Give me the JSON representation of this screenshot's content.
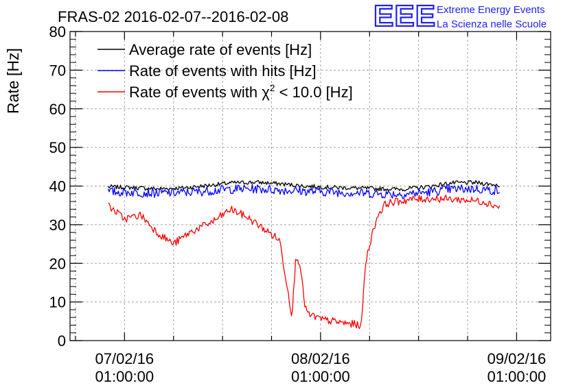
{
  "colors": {
    "average": "#000000",
    "hits": "#0000ff",
    "chi2": "#ff0000",
    "logo": "#2222ee",
    "grid": "#a0a0a0"
  },
  "logo": {
    "mark": "EEE",
    "line1": "Extreme Energy Events",
    "line2": "La Scienza nelle Scuole"
  },
  "chart_data": {
    "type": "line",
    "title": "FRAS-02 2016-02-07--2016-02-08",
    "ylabel": "Rate [Hz]",
    "xlabel": "",
    "ylim": [
      0,
      80
    ],
    "xlim": [
      "2016-02-06 18:20",
      "2016-02-09 05:10"
    ],
    "yticks": [
      0,
      10,
      20,
      30,
      40,
      50,
      60,
      70,
      80
    ],
    "xticks": [
      {
        "x": "2016-02-07 01:00:00",
        "date": "07/02/16",
        "time": "01:00:00"
      },
      {
        "x": "2016-02-08 01:00:00",
        "date": "08/02/16",
        "time": "01:00:00"
      },
      {
        "x": "2016-02-09 01:00:00",
        "date": "09/02/16",
        "time": "01:00:00"
      }
    ],
    "grid": true,
    "legend_position": "top-left",
    "series": [
      {
        "name": "Average rate of events [Hz]",
        "color": "#000000",
        "x": [
          "2016-02-06 23:00",
          "2016-02-07 02:00",
          "2016-02-07 05:00",
          "2016-02-07 08:00",
          "2016-02-07 11:00",
          "2016-02-07 14:00",
          "2016-02-07 17:00",
          "2016-02-07 20:00",
          "2016-02-07 23:00",
          "2016-02-08 02:00",
          "2016-02-08 05:00",
          "2016-02-08 08:00",
          "2016-02-08 11:00",
          "2016-02-08 14:00",
          "2016-02-08 17:00",
          "2016-02-08 20:00",
          "2016-02-08 23:00"
        ],
        "y": [
          39.8,
          39.6,
          39.3,
          39.5,
          40.1,
          40.8,
          41.0,
          40.6,
          40.0,
          39.7,
          39.5,
          39.3,
          39.2,
          39.8,
          40.8,
          40.9,
          40.2
        ]
      },
      {
        "name": "Rate of events with hits [Hz]",
        "color": "#0000ff",
        "x": [
          "2016-02-06 23:00",
          "2016-02-07 02:00",
          "2016-02-07 05:00",
          "2016-02-07 08:00",
          "2016-02-07 11:00",
          "2016-02-07 14:00",
          "2016-02-07 17:00",
          "2016-02-07 20:00",
          "2016-02-07 23:00",
          "2016-02-08 02:00",
          "2016-02-08 05:00",
          "2016-02-08 08:00",
          "2016-02-08 11:00",
          "2016-02-08 14:00",
          "2016-02-08 17:00",
          "2016-02-08 20:00",
          "2016-02-08 23:00"
        ],
        "y": [
          38.5,
          38.4,
          38.2,
          38.3,
          38.7,
          39.2,
          39.3,
          39.0,
          38.7,
          38.5,
          38.3,
          38.0,
          37.9,
          38.4,
          39.2,
          39.3,
          38.7
        ]
      },
      {
        "name": "Rate of events with χ² < 10.0 [Hz]",
        "legend_main": "Rate of events with χ",
        "legend_sup": "2",
        "legend_tail": " < 10.0 [Hz]",
        "color": "#ff0000",
        "x": [
          "2016-02-06 23:00",
          "2016-02-07 01:00",
          "2016-02-07 03:00",
          "2016-02-07 05:00",
          "2016-02-07 07:00",
          "2016-02-07 09:00",
          "2016-02-07 12:00",
          "2016-02-07 14:00",
          "2016-02-07 16:00",
          "2016-02-07 18:00",
          "2016-02-07 20:00",
          "2016-02-07 21:30",
          "2016-02-07 22:00",
          "2016-02-07 22:30",
          "2016-02-07 23:00",
          "2016-02-07 23:30",
          "2016-02-08 00:00",
          "2016-02-08 01:00",
          "2016-02-08 04:00",
          "2016-02-08 06:00",
          "2016-02-08 06:30",
          "2016-02-08 07:00",
          "2016-02-08 08:00",
          "2016-02-08 09:00",
          "2016-02-08 12:00",
          "2016-02-08 15:00",
          "2016-02-08 18:00",
          "2016-02-08 21:00",
          "2016-02-08 23:00"
        ],
        "y": [
          35.0,
          31.5,
          32.5,
          28.0,
          25.0,
          28.0,
          31.0,
          34.0,
          32.0,
          29.0,
          26.0,
          6.5,
          22.0,
          20.0,
          10.0,
          6.5,
          6.5,
          5.5,
          4.5,
          4.0,
          20.0,
          25.0,
          32.5,
          35.5,
          36.5,
          36.8,
          36.5,
          36.0,
          34.5
        ]
      }
    ]
  }
}
